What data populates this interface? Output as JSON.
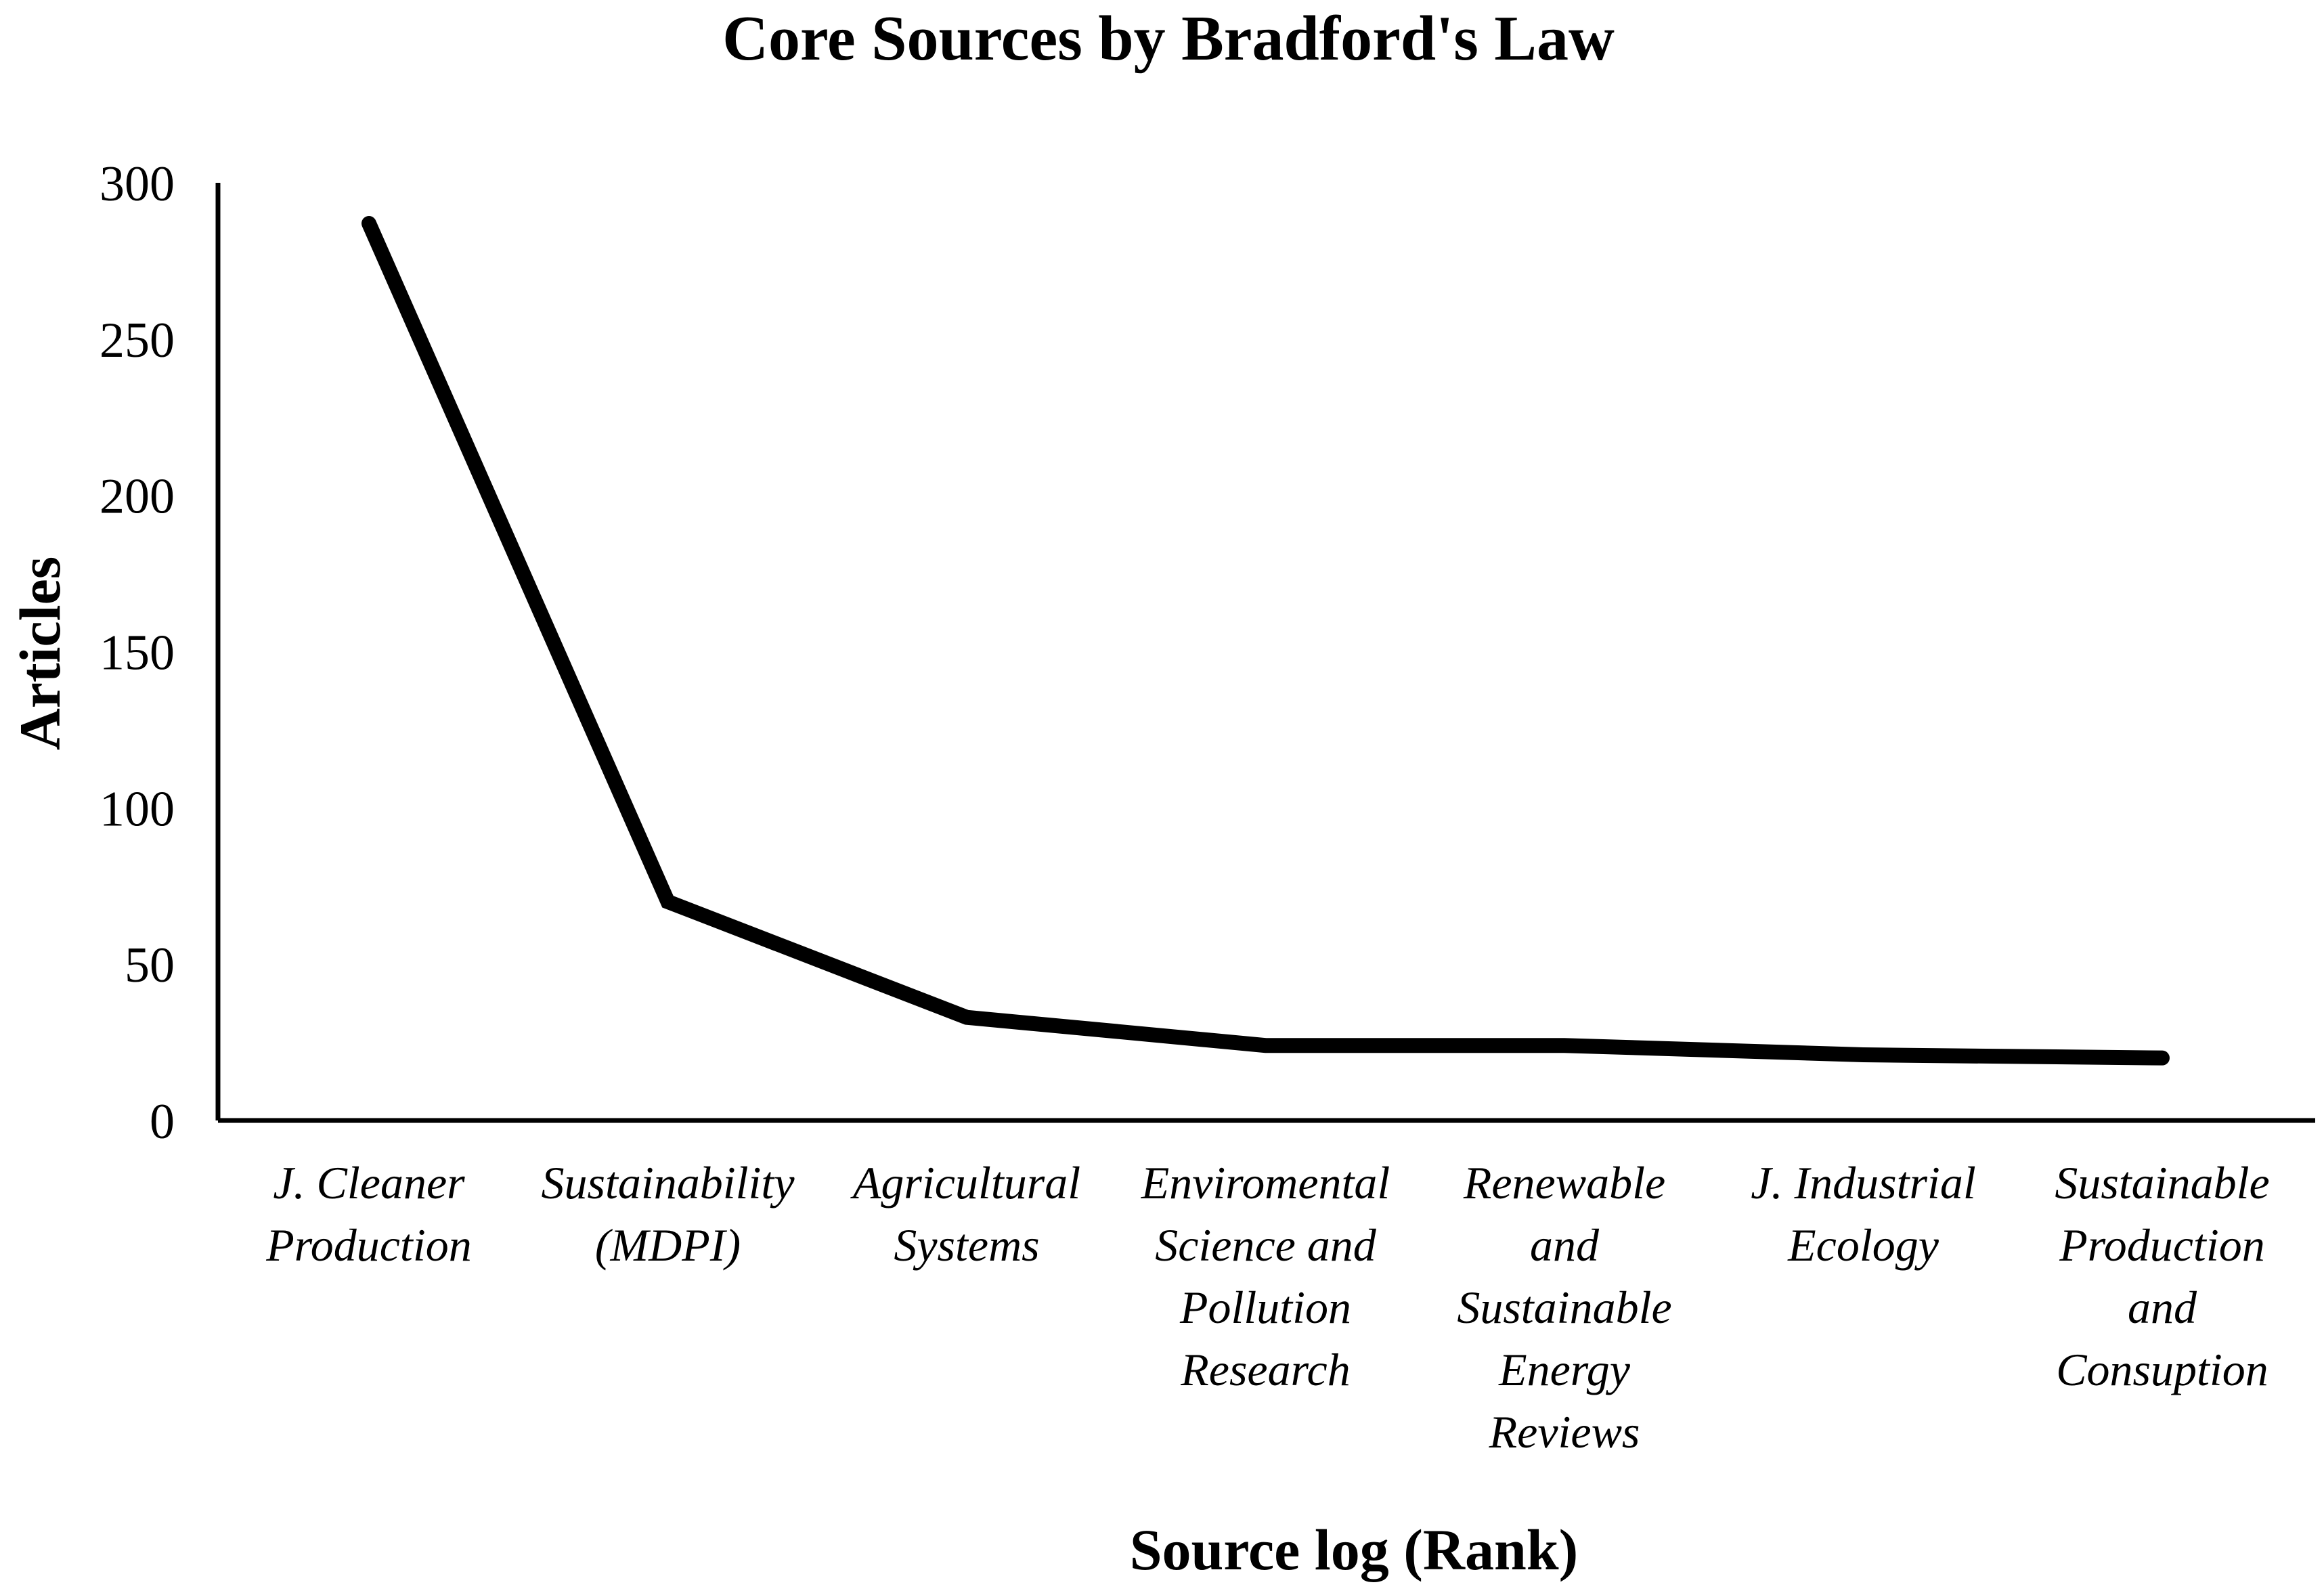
{
  "chart_data": {
    "type": "line",
    "title": "Core Sources by Bradford's Law",
    "xlabel": "Source log (Rank)",
    "ylabel": "Articles",
    "ylim": [
      0,
      300
    ],
    "yticks": [
      0,
      50,
      100,
      150,
      200,
      250,
      300
    ],
    "categories": [
      "J. Cleaner Production",
      "Sustainability (MDPI)",
      "Agricultural Systems",
      "Enviromental Science and Pollution Research",
      "Renewable and Sustainable Energy Reviews",
      "J. Industrial Ecology",
      "Sustainable Production and Consuption"
    ],
    "category_lines": [
      [
        "J. Cleaner",
        "Production"
      ],
      [
        "Sustainability",
        "(MDPI)"
      ],
      [
        "Agricultural",
        "Systems"
      ],
      [
        "Enviromental",
        "Science and",
        "Pollution",
        "Research"
      ],
      [
        "Renewable",
        "and",
        "Sustainable",
        "Energy",
        "Reviews"
      ],
      [
        "J. Industrial",
        "Ecology"
      ],
      [
        "Sustainable",
        "Production",
        "and",
        "Consuption"
      ]
    ],
    "series": [
      {
        "values": [
          287,
          70,
          33,
          24,
          24,
          21,
          20
        ],
        "color": "#000000"
      }
    ],
    "grid": false,
    "legend": "none"
  }
}
